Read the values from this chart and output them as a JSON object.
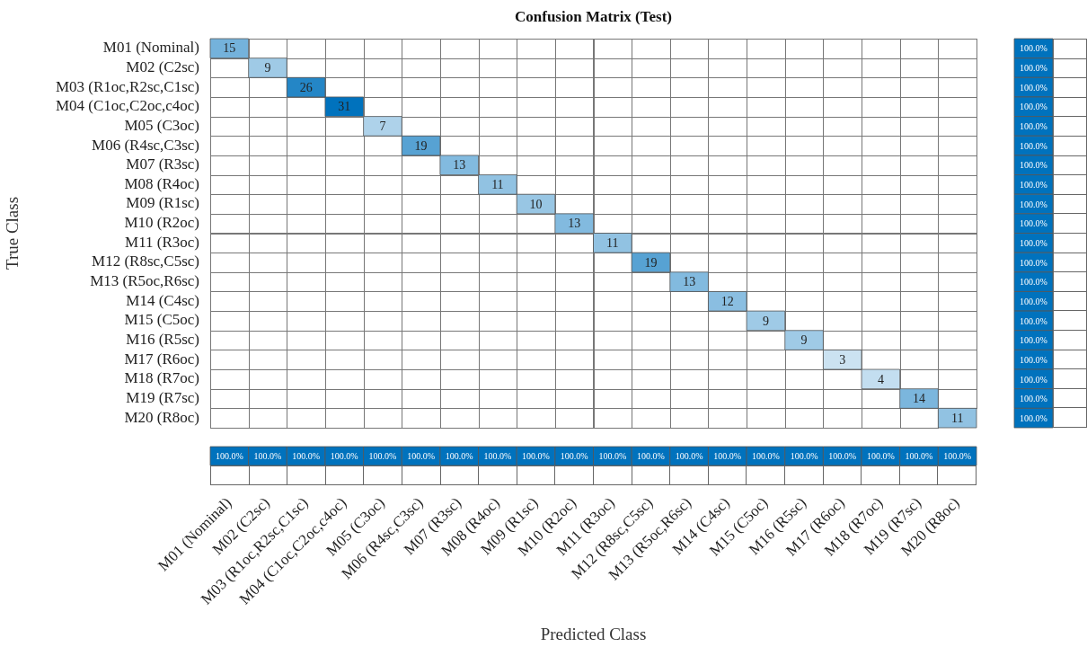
{
  "chart_data": [
    {
      "type": "heatmap",
      "title": "Confusion Matrix (Test)",
      "xlabel": "Predicted Class",
      "ylabel": "True Class",
      "color": "#0072bd",
      "data_labels": true,
      "categories": [
        "M01 (Nominal)",
        "M02 (C2sc)",
        "M03 (R1oc,R2sc,C1sc)",
        "M04 (C1oc,C2oc,c4oc)",
        "M05 (C3oc)",
        "M06 (R4sc,C3sc)",
        "M07 (R3sc)",
        "M08 (R4oc)",
        "M09 (R1sc)",
        "M10 (R2oc)",
        "M11 (R3oc)",
        "M12 (R8sc,C5sc)",
        "M13 (R5oc,R6sc)",
        "M14 (C4sc)",
        "M15 (C5oc)",
        "M16 (R5sc)",
        "M17 (R6oc)",
        "M18 (R7oc)",
        "M19 (R7sc)",
        "M20 (R8oc)"
      ],
      "y_categories": [
        "M01 (Nominal)",
        "M02 (C2sc)",
        "M03 (R1oc,R2sc,C1sc)",
        "M04 (C1oc,C2oc,c4oc)",
        "M05 (C3oc)",
        "M06 (R4sc,C3sc)",
        "M07 (R3sc)",
        "M08 (R4oc)",
        "M09 (R1sc)",
        "M10 (R2oc)",
        "M11 (R3oc)",
        "M12 (R8sc,C5sc)",
        "M13 (R5oc,R6sc)",
        "M14 (C4sc)",
        "M15 (C5oc)",
        "M16 (R5sc)",
        "M17 (R6oc)",
        "M18 (R7oc)",
        "M19 (R7sc)",
        "M20 (R8oc)"
      ],
      "cells": [
        [
          15,
          null,
          null,
          null,
          null,
          null,
          null,
          null,
          null,
          null,
          null,
          null,
          null,
          null,
          null,
          null,
          null,
          null,
          null,
          null
        ],
        [
          null,
          9,
          null,
          null,
          null,
          null,
          null,
          null,
          null,
          null,
          null,
          null,
          null,
          null,
          null,
          null,
          null,
          null,
          null,
          null
        ],
        [
          null,
          null,
          26,
          null,
          null,
          null,
          null,
          null,
          null,
          null,
          null,
          null,
          null,
          null,
          null,
          null,
          null,
          null,
          null,
          null
        ],
        [
          null,
          null,
          null,
          31,
          null,
          null,
          null,
          null,
          null,
          null,
          null,
          null,
          null,
          null,
          null,
          null,
          null,
          null,
          null,
          null
        ],
        [
          null,
          null,
          null,
          null,
          7,
          null,
          null,
          null,
          null,
          null,
          null,
          null,
          null,
          null,
          null,
          null,
          null,
          null,
          null,
          null
        ],
        [
          null,
          null,
          null,
          null,
          null,
          19,
          null,
          null,
          null,
          null,
          null,
          null,
          null,
          null,
          null,
          null,
          null,
          null,
          null,
          null
        ],
        [
          null,
          null,
          null,
          null,
          null,
          null,
          13,
          null,
          null,
          null,
          null,
          null,
          null,
          null,
          null,
          null,
          null,
          null,
          null,
          null
        ],
        [
          null,
          null,
          null,
          null,
          null,
          null,
          null,
          11,
          null,
          null,
          null,
          null,
          null,
          null,
          null,
          null,
          null,
          null,
          null,
          null
        ],
        [
          null,
          null,
          null,
          null,
          null,
          null,
          null,
          null,
          10,
          null,
          null,
          null,
          null,
          null,
          null,
          null,
          null,
          null,
          null,
          null
        ],
        [
          null,
          null,
          null,
          null,
          null,
          null,
          null,
          null,
          null,
          13,
          null,
          null,
          null,
          null,
          null,
          null,
          null,
          null,
          null,
          null
        ],
        [
          null,
          null,
          null,
          null,
          null,
          null,
          null,
          null,
          null,
          null,
          11,
          null,
          null,
          null,
          null,
          null,
          null,
          null,
          null,
          null
        ],
        [
          null,
          null,
          null,
          null,
          null,
          null,
          null,
          null,
          null,
          null,
          null,
          19,
          null,
          null,
          null,
          null,
          null,
          null,
          null,
          null
        ],
        [
          null,
          null,
          null,
          null,
          null,
          null,
          null,
          null,
          null,
          null,
          null,
          null,
          13,
          null,
          null,
          null,
          null,
          null,
          null,
          null
        ],
        [
          null,
          null,
          null,
          null,
          null,
          null,
          null,
          null,
          null,
          null,
          null,
          null,
          null,
          12,
          null,
          null,
          null,
          null,
          null,
          null
        ],
        [
          null,
          null,
          null,
          null,
          null,
          null,
          null,
          null,
          null,
          null,
          null,
          null,
          null,
          null,
          9,
          null,
          null,
          null,
          null,
          null
        ],
        [
          null,
          null,
          null,
          null,
          null,
          null,
          null,
          null,
          null,
          null,
          null,
          null,
          null,
          null,
          null,
          9,
          null,
          null,
          null,
          null
        ],
        [
          null,
          null,
          null,
          null,
          null,
          null,
          null,
          null,
          null,
          null,
          null,
          null,
          null,
          null,
          null,
          null,
          3,
          null,
          null,
          null
        ],
        [
          null,
          null,
          null,
          null,
          null,
          null,
          null,
          null,
          null,
          null,
          null,
          null,
          null,
          null,
          null,
          null,
          null,
          4,
          null,
          null
        ],
        [
          null,
          null,
          null,
          null,
          null,
          null,
          null,
          null,
          null,
          null,
          null,
          null,
          null,
          null,
          null,
          null,
          null,
          null,
          14,
          null
        ],
        [
          null,
          null,
          null,
          null,
          null,
          null,
          null,
          null,
          null,
          null,
          null,
          null,
          null,
          null,
          null,
          null,
          null,
          null,
          null,
          11
        ]
      ]
    },
    {
      "type": "heatmap",
      "color": "#0072bd",
      "categories": [
        null
      ],
      "y_categories": [
        null,
        null,
        null,
        null,
        null,
        null,
        null,
        null,
        null,
        null,
        null,
        null,
        null,
        null,
        null,
        null,
        null,
        null,
        null,
        null
      ],
      "cells": [
        [
          100
        ],
        [
          100
        ],
        [
          100
        ],
        [
          100
        ],
        [
          100
        ],
        [
          100
        ],
        [
          100
        ],
        [
          100
        ],
        [
          100
        ],
        [
          100
        ],
        [
          100
        ],
        [
          100
        ],
        [
          100
        ],
        [
          100
        ],
        [
          100
        ],
        [
          100
        ],
        [
          100
        ],
        [
          100
        ],
        [
          100
        ],
        [
          100
        ]
      ],
      "cell_labels": [
        [
          "100.0%"
        ],
        [
          "100.0%"
        ],
        [
          "100.0%"
        ],
        [
          "100.0%"
        ],
        [
          "100.0%"
        ],
        [
          "100.0%"
        ],
        [
          "100.0%"
        ],
        [
          "100.0%"
        ],
        [
          "100.0%"
        ],
        [
          "100.0%"
        ],
        [
          "100.0%"
        ],
        [
          "100.0%"
        ],
        [
          "100.0%"
        ],
        [
          "100.0%"
        ],
        [
          "100.0%"
        ],
        [
          "100.0%"
        ],
        [
          "100.0%"
        ],
        [
          "100.0%"
        ],
        [
          "100.0%"
        ],
        [
          "100.0%"
        ]
      ]
    },
    {
      "type": "heatmap",
      "color": "#0072bd",
      "categories": [
        null,
        null,
        null,
        null,
        null,
        null,
        null,
        null,
        null,
        null,
        null,
        null,
        null,
        null,
        null,
        null,
        null,
        null,
        null,
        null
      ],
      "y_categories": [
        null
      ],
      "cells": [
        [
          100,
          100,
          100,
          100,
          100,
          100,
          100,
          100,
          100,
          100,
          100,
          100,
          100,
          100,
          100,
          100,
          100,
          100,
          100,
          100
        ]
      ],
      "cell_labels": [
        [
          "100.0%",
          "100.0%",
          "100.0%",
          "100.0%",
          "100.0%",
          "100.0%",
          "100.0%",
          "100.0%",
          "100.0%",
          "100.0%",
          "100.0%",
          "100.0%",
          "100.0%",
          "100.0%",
          "100.0%",
          "100.0%",
          "100.0%",
          "100.0%",
          "100.0%",
          "100.0%"
        ]
      ]
    }
  ]
}
